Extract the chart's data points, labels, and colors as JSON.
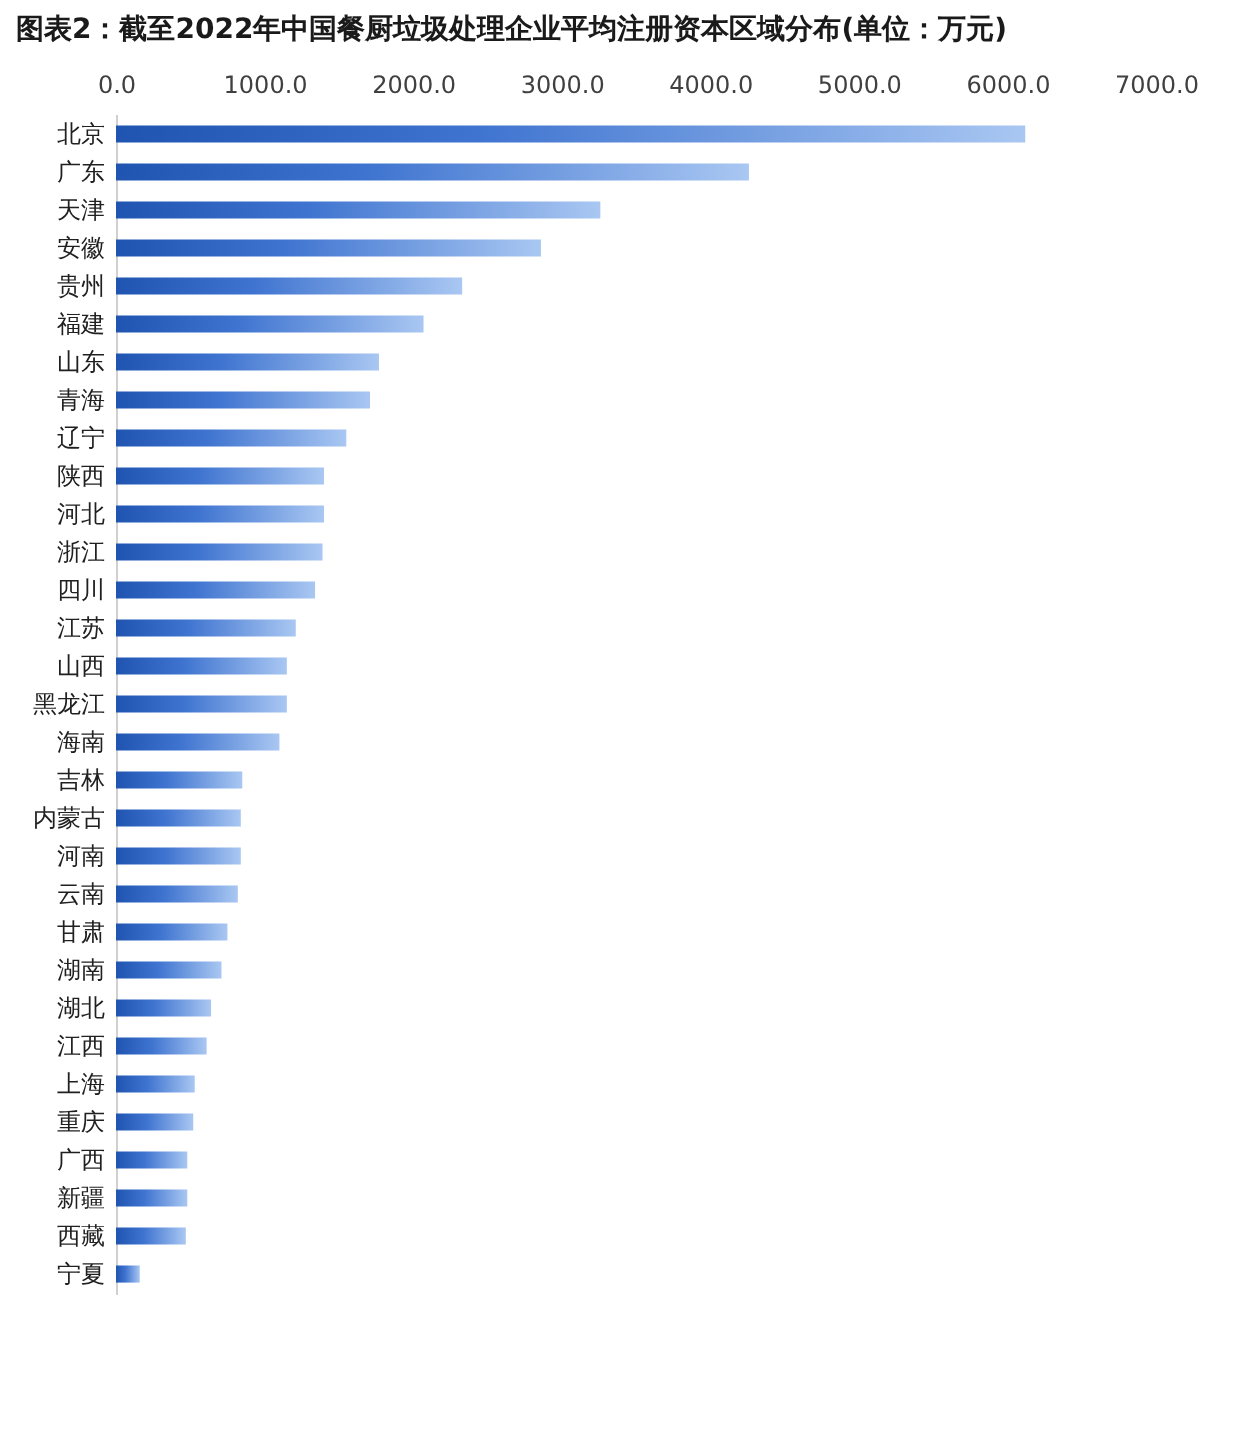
{
  "chart_data": {
    "type": "bar",
    "orientation": "horizontal",
    "title": "图表2：截至2022年中国餐厨垃圾处理企业平均注册资本区域分布(单位：万元)",
    "categories": [
      "北京",
      "广东",
      "天津",
      "安徽",
      "贵州",
      "福建",
      "山东",
      "青海",
      "辽宁",
      "陕西",
      "河北",
      "浙江",
      "四川",
      "江苏",
      "山西",
      "黑龙江",
      "海南",
      "吉林",
      "内蒙古",
      "河南",
      "云南",
      "甘肃",
      "湖南",
      "湖北",
      "江西",
      "上海",
      "重庆",
      "广西",
      "新疆",
      "西藏",
      "宁夏"
    ],
    "values": [
      6120,
      4260,
      3260,
      2860,
      2330,
      2070,
      1770,
      1710,
      1550,
      1400,
      1400,
      1390,
      1340,
      1210,
      1150,
      1150,
      1100,
      850,
      840,
      840,
      820,
      750,
      710,
      640,
      610,
      530,
      520,
      480,
      480,
      470,
      160
    ],
    "color": "#3f74d0",
    "xlim": [
      0,
      7000
    ],
    "xticks": [
      {
        "value": 0,
        "label": "0.0"
      },
      {
        "value": 1000,
        "label": "1000.0"
      },
      {
        "value": 2000,
        "label": "2000.0"
      },
      {
        "value": 3000,
        "label": "3000.0"
      },
      {
        "value": 4000,
        "label": "4000.0"
      },
      {
        "value": 5000,
        "label": "5000.0"
      },
      {
        "value": 6000,
        "label": "6000.0"
      },
      {
        "value": 7000,
        "label": "7000.0"
      }
    ],
    "grid": false
  }
}
